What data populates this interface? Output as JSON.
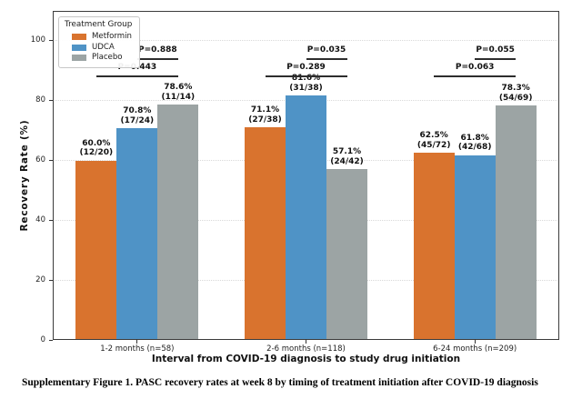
{
  "caption": "Supplementary Figure 1. PASC recovery rates at week 8 by timing of treatment initiation after COVID-19 diagnosis",
  "chart_data": {
    "type": "bar",
    "title": "",
    "xlabel": "Interval from COVID-19 diagnosis to study drug initiation",
    "ylabel": "Recovery Rate (%)",
    "ylim": [
      0,
      110
    ],
    "yticks": [
      0,
      20,
      40,
      60,
      80,
      100
    ],
    "grid": "horizontal-dotted",
    "legend": {
      "title": "Treatment Group",
      "position": "upper-left"
    },
    "categories": [
      "1-2 months (n=58)",
      "2-6 months (n=118)",
      "6-24 months (n=209)"
    ],
    "series": [
      {
        "name": "Metformin",
        "color": "#d9732e",
        "values": [
          60.0,
          71.1,
          62.5
        ],
        "pct_labels": [
          "60.0%",
          "71.1%",
          "62.5%"
        ],
        "count_labels": [
          "(12/20)",
          "(27/38)",
          "(45/72)"
        ]
      },
      {
        "name": "UDCA",
        "color": "#4f93c6",
        "values": [
          70.8,
          81.6,
          61.8
        ],
        "pct_labels": [
          "70.8%",
          "81.6%",
          "61.8%"
        ],
        "count_labels": [
          "(17/24)",
          "(31/38)",
          "(42/68)"
        ]
      },
      {
        "name": "Placebo",
        "color": "#9ca4a4",
        "values": [
          78.6,
          57.1,
          78.3
        ],
        "pct_labels": [
          "78.6%",
          "57.1%",
          "78.3%"
        ],
        "count_labels": [
          "(11/14)",
          "(24/42)",
          "(54/69)"
        ]
      }
    ],
    "comparisons": [
      {
        "group": 0,
        "from_series": 0,
        "to_series": 2,
        "label": "P=0.443",
        "level": 0
      },
      {
        "group": 0,
        "from_series": 1,
        "to_series": 2,
        "label": "P=0.888",
        "level": 1
      },
      {
        "group": 1,
        "from_series": 0,
        "to_series": 2,
        "label": "P=0.289",
        "level": 0
      },
      {
        "group": 1,
        "from_series": 1,
        "to_series": 2,
        "label": "P=0.035",
        "level": 1
      },
      {
        "group": 2,
        "from_series": 0,
        "to_series": 2,
        "label": "P=0.063",
        "level": 0
      },
      {
        "group": 2,
        "from_series": 1,
        "to_series": 2,
        "label": "P=0.055",
        "level": 1
      }
    ]
  }
}
